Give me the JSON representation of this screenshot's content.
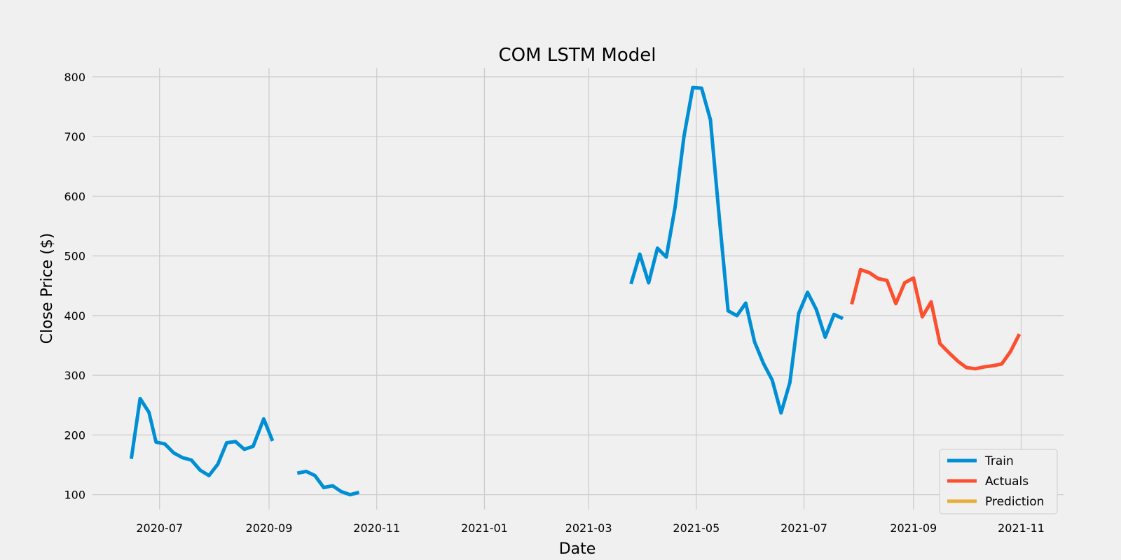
{
  "chart_data": {
    "type": "line",
    "title": "COM LSTM Model",
    "xlabel": "Date",
    "ylabel": "Close Price ($)",
    "xlim": [
      "2020-05-24",
      "2021-11-25"
    ],
    "ylim": [
      75,
      815
    ],
    "x_ticks": [
      "2020-07",
      "2020-09",
      "2020-11",
      "2021-01",
      "2021-03",
      "2021-05",
      "2021-07",
      "2021-09",
      "2021-11"
    ],
    "y_ticks": [
      100,
      200,
      300,
      400,
      500,
      600,
      700,
      800
    ],
    "grid": true,
    "legend_position": "bottom-right",
    "series": [
      {
        "name": "Train",
        "color": "#008fd5",
        "segments": [
          [
            [
              "2020-06-15",
              160
            ],
            [
              "2020-06-20",
              261
            ],
            [
              "2020-06-25",
              238
            ],
            [
              "2020-06-29",
              188
            ],
            [
              "2020-07-04",
              185
            ],
            [
              "2020-07-09",
              170
            ],
            [
              "2020-07-14",
              162
            ],
            [
              "2020-07-19",
              158
            ],
            [
              "2020-07-24",
              141
            ],
            [
              "2020-07-29",
              132
            ],
            [
              "2020-08-03",
              151
            ],
            [
              "2020-08-08",
              187
            ],
            [
              "2020-08-13",
              189
            ],
            [
              "2020-08-18",
              176
            ],
            [
              "2020-08-23",
              181
            ],
            [
              "2020-08-29",
              227
            ],
            [
              "2020-09-03",
              190
            ]
          ],
          [
            [
              "2020-09-17",
              136
            ],
            [
              "2020-09-22",
              139
            ],
            [
              "2020-09-27",
              132
            ],
            [
              "2020-10-02",
              112
            ],
            [
              "2020-10-07",
              115
            ],
            [
              "2020-10-12",
              105
            ],
            [
              "2020-10-17",
              100
            ],
            [
              "2020-10-22",
              104
            ]
          ],
          [
            [
              "2021-03-25",
              453
            ],
            [
              "2021-03-30",
              503
            ],
            [
              "2021-04-04",
              455
            ],
            [
              "2021-04-09",
              513
            ],
            [
              "2021-04-14",
              498
            ],
            [
              "2021-04-19",
              582
            ],
            [
              "2021-04-24",
              700
            ],
            [
              "2021-04-29",
              782
            ],
            [
              "2021-05-04",
              781
            ],
            [
              "2021-05-09",
              728
            ],
            [
              "2021-05-14",
              565
            ],
            [
              "2021-05-19",
              408
            ],
            [
              "2021-05-24",
              400
            ],
            [
              "2021-05-29",
              421
            ],
            [
              "2021-06-03",
              356
            ],
            [
              "2021-06-08",
              320
            ],
            [
              "2021-06-13",
              292
            ],
            [
              "2021-06-18",
              237
            ],
            [
              "2021-06-23",
              288
            ],
            [
              "2021-06-28",
              404
            ],
            [
              "2021-07-03",
              439
            ],
            [
              "2021-07-08",
              410
            ],
            [
              "2021-07-13",
              364
            ],
            [
              "2021-07-18",
              402
            ],
            [
              "2021-07-23",
              395
            ]
          ]
        ]
      },
      {
        "name": "Actuals",
        "color": "#fc4f30",
        "segments": [
          [
            [
              "2021-07-28",
              419
            ],
            [
              "2021-08-02",
              477
            ],
            [
              "2021-08-07",
              472
            ],
            [
              "2021-08-12",
              462
            ],
            [
              "2021-08-17",
              459
            ],
            [
              "2021-08-22",
              420
            ],
            [
              "2021-08-27",
              455
            ],
            [
              "2021-09-01",
              463
            ],
            [
              "2021-09-06",
              398
            ],
            [
              "2021-09-11",
              423
            ],
            [
              "2021-09-16",
              353
            ],
            [
              "2021-09-21",
              338
            ],
            [
              "2021-09-26",
              324
            ],
            [
              "2021-10-01",
              313
            ],
            [
              "2021-10-06",
              311
            ],
            [
              "2021-10-11",
              314
            ],
            [
              "2021-10-16",
              316
            ],
            [
              "2021-10-21",
              319
            ],
            [
              "2021-10-26",
              340
            ],
            [
              "2021-10-31",
              369
            ]
          ]
        ]
      },
      {
        "name": "Prediction",
        "color": "#e5ae38",
        "segments": []
      }
    ]
  }
}
